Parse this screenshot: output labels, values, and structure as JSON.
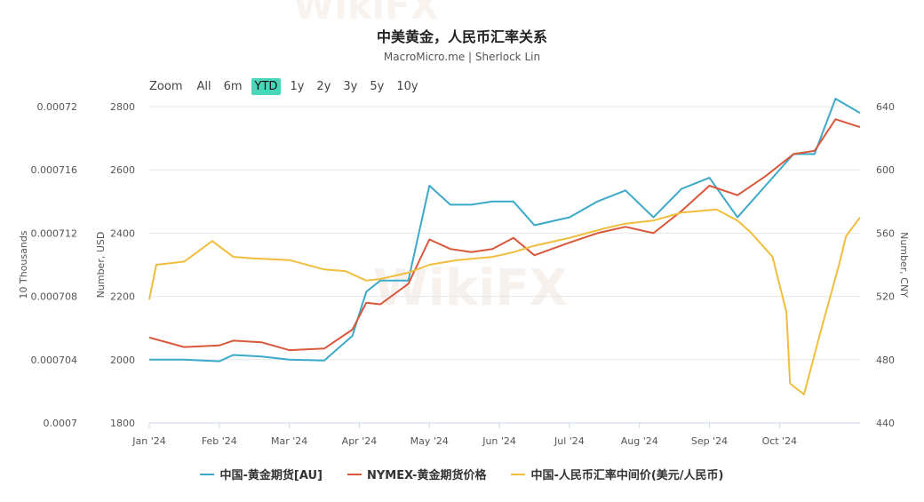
{
  "header": {
    "title": "中美黄金，人民币汇率关系",
    "subtitle": "MacroMicro.me | Sherlock Lin"
  },
  "zoom": {
    "label": "Zoom",
    "buttons": [
      "All",
      "6m",
      "YTD",
      "1y",
      "2y",
      "3y",
      "5y",
      "10y"
    ],
    "active": "YTD"
  },
  "watermark": "WikiFX",
  "colors": {
    "au": "#3ca9c9",
    "nymex": "#d9573b",
    "cny": "#f0be3c",
    "grid": "#e6e6e6",
    "active_zoom": "#48d6b8"
  },
  "legend": [
    {
      "label": "中国-黄金期货[AU]",
      "color": "#3ca9c9"
    },
    {
      "label": "NYMEX-黄金期货价格",
      "color": "#d9573b"
    },
    {
      "label": "中国-人民币汇率中间价(美元/人民币)",
      "color": "#f0be3c"
    }
  ],
  "chart_data": {
    "type": "line",
    "x_ticks": [
      "Jan '24",
      "Feb '24",
      "Mar '24",
      "Apr '24",
      "May '24",
      "Jun '24",
      "Jul '24",
      "Aug '24",
      "Sep '24",
      "Oct '24"
    ],
    "axes": {
      "left_outer": {
        "title": "10 Thousands",
        "ticks": [
          "0.0007",
          "0.000704",
          "0.000708",
          "0.000712",
          "0.000716",
          "0.00072"
        ],
        "range": [
          0.0007,
          0.00072
        ]
      },
      "left_inner": {
        "title": "Number, USD",
        "ticks": [
          "1800",
          "2000",
          "2200",
          "2400",
          "2600",
          "2800"
        ],
        "range": [
          1800,
          2800
        ]
      },
      "right": {
        "title": "Number, CNY",
        "ticks": [
          "440",
          "480",
          "520",
          "560",
          "600",
          "640"
        ],
        "range": [
          440,
          640
        ]
      }
    },
    "grid": true,
    "legend_position": "bottom",
    "series": [
      {
        "name": "中国-黄金期货[AU]",
        "axis": "left_outer",
        "x": [
          0,
          0.5,
          1,
          1.2,
          1.6,
          2,
          2.5,
          2.9,
          3.1,
          3.3,
          3.7,
          4,
          4.3,
          4.6,
          4.9,
          5.2,
          5.5,
          6,
          6.4,
          6.8,
          7.2,
          7.6,
          8,
          8.4,
          8.8,
          9.2,
          9.5,
          9.8,
          10.15
        ],
        "y": [
          0.000704,
          0.000704,
          0.0007039,
          0.0007043,
          0.0007042,
          0.000704,
          0.00070395,
          0.0007055,
          0.0007083,
          0.000709,
          0.000709,
          0.000715,
          0.0007138,
          0.0007138,
          0.000714,
          0.000714,
          0.0007125,
          0.000713,
          0.000714,
          0.0007147,
          0.000713,
          0.0007148,
          0.0007155,
          0.000713,
          0.000715,
          0.000717,
          0.000717,
          0.0007205,
          0.0007196
        ]
      },
      {
        "name": "NYMEX-黄金期货价格",
        "axis": "left_inner",
        "x": [
          0,
          0.5,
          1,
          1.2,
          1.6,
          2,
          2.5,
          2.9,
          3.1,
          3.3,
          3.7,
          4,
          4.3,
          4.6,
          4.9,
          5.2,
          5.5,
          6,
          6.4,
          6.8,
          7.2,
          7.6,
          8,
          8.4,
          8.8,
          9.2,
          9.5,
          9.8,
          10.15
        ],
        "y": [
          2070,
          2040,
          2045,
          2060,
          2055,
          2030,
          2035,
          2095,
          2180,
          2175,
          2240,
          2380,
          2350,
          2340,
          2350,
          2385,
          2330,
          2370,
          2400,
          2420,
          2400,
          2470,
          2550,
          2520,
          2580,
          2650,
          2660,
          2760,
          2735
        ]
      },
      {
        "name": "中国-人民币汇率中间价(美元/人民币)",
        "axis": "right",
        "x": [
          0,
          0.1,
          0.3,
          0.5,
          0.9,
          1.2,
          1.5,
          2,
          2.5,
          2.8,
          3.1,
          3.3,
          3.7,
          4,
          4.4,
          4.9,
          5.2,
          5.5,
          5.9,
          6,
          6.5,
          6.8,
          7.2,
          7.6,
          8.1,
          8.4,
          8.6,
          8.9,
          9.1,
          9.15,
          9.35,
          9.6,
          9.85,
          9.95,
          10.15
        ],
        "y": [
          518,
          540,
          541,
          542,
          555,
          545,
          544,
          543,
          537,
          536,
          530,
          531,
          535,
          540,
          543,
          545,
          548,
          552,
          556,
          557,
          563,
          566,
          568,
          573,
          575,
          568,
          560,
          545,
          510,
          465,
          458,
          500,
          540,
          558,
          570
        ]
      }
    ]
  }
}
